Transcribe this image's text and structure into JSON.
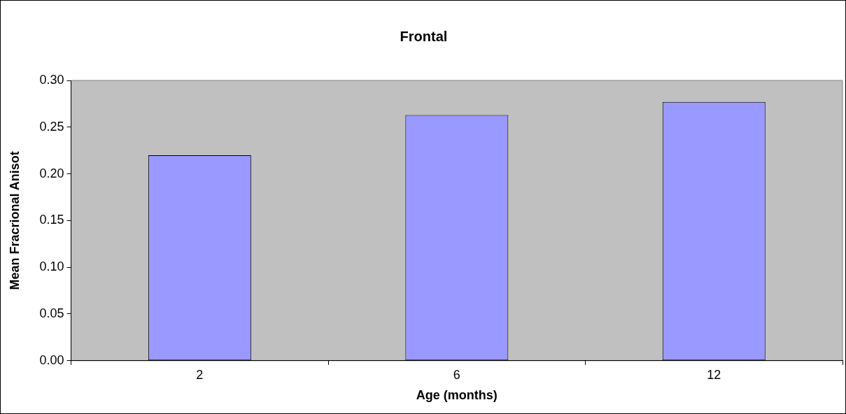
{
  "chart_data": {
    "type": "bar",
    "title": "Frontal",
    "xlabel": "Age (months)",
    "ylabel": "Mean Fracrional Anisot",
    "categories": [
      "2",
      "6",
      "12"
    ],
    "series": [
      {
        "color": "#9999ff",
        "values": [
          0.22,
          0.263,
          0.277
        ]
      }
    ],
    "ylim": [
      0,
      0.3
    ],
    "yticks": [
      {
        "value": 0,
        "label": "0.00"
      },
      {
        "value": 0.05,
        "label": "0.05"
      },
      {
        "value": 0.1,
        "label": "0.10"
      },
      {
        "value": 0.15,
        "label": "0.15"
      },
      {
        "value": 0.2,
        "label": "0.20"
      },
      {
        "value": 0.25,
        "label": "0.25"
      },
      {
        "value": 0.3,
        "label": "0.30"
      }
    ],
    "grid": false,
    "legend": false
  }
}
